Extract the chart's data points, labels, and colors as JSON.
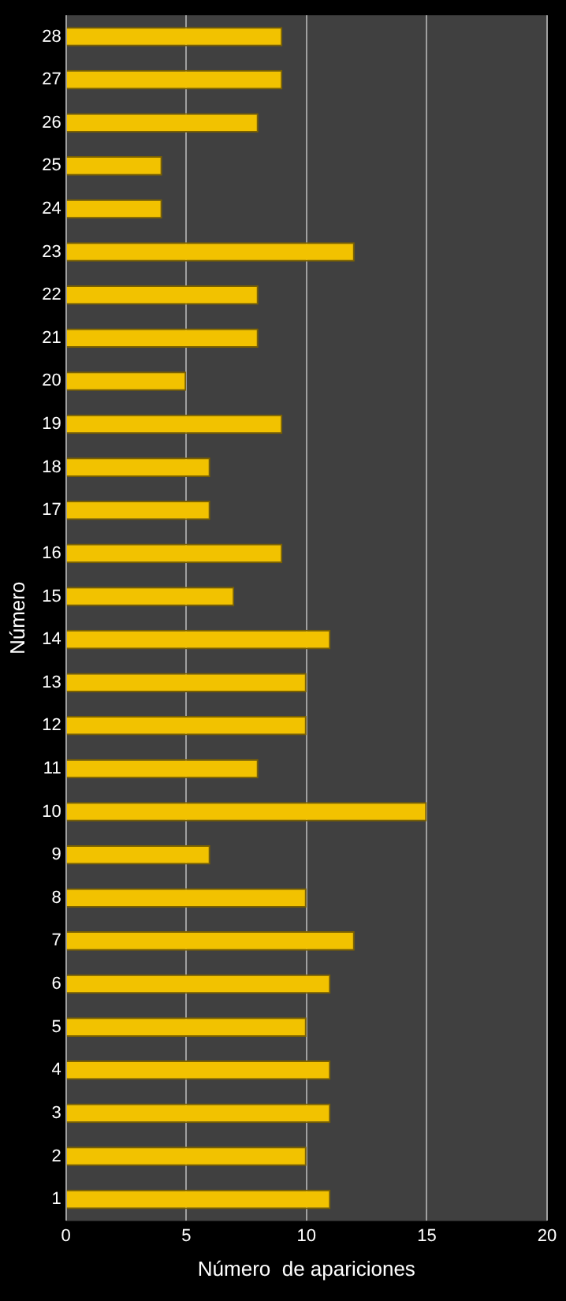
{
  "chart_data": {
    "type": "bar",
    "orientation": "horizontal",
    "xlabel": "Número  de apariciones",
    "ylabel": "Número",
    "categories": [
      "28",
      "27",
      "26",
      "25",
      "24",
      "23",
      "22",
      "21",
      "20",
      "19",
      "18",
      "17",
      "16",
      "15",
      "14",
      "13",
      "12",
      "11",
      "10",
      "9",
      "8",
      "7",
      "6",
      "5",
      "4",
      "3",
      "2",
      "1"
    ],
    "values": [
      9,
      9,
      8,
      4,
      4,
      12,
      8,
      8,
      5,
      9,
      6,
      6,
      9,
      7,
      11,
      10,
      10,
      8,
      15,
      6,
      10,
      12,
      11,
      10,
      11,
      11,
      10,
      11
    ],
    "color": "#f2c200",
    "xlim": [
      0,
      20
    ],
    "xticks": [
      0,
      5,
      10,
      15,
      20
    ],
    "grid": "x"
  }
}
